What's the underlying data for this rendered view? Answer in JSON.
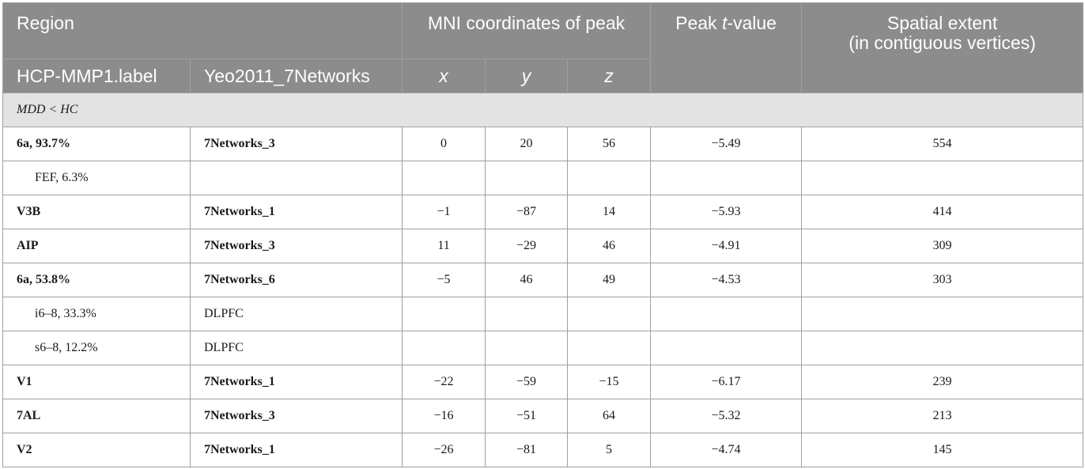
{
  "header": {
    "region": "Region",
    "mni": "MNI coordinates of peak",
    "peak_prefix": "Peak ",
    "peak_t": "t",
    "peak_suffix": "-value",
    "extent_line1": "Spatial extent",
    "extent_line2": "(in contiguous vertices)",
    "hcp": "HCP-MMP1.label",
    "yeo": "Yeo2011_7Networks",
    "x": "x",
    "y": "y",
    "z": "z"
  },
  "section_label": "MDD < HC",
  "rows": [
    {
      "hcp": "6a, 93.7%",
      "yeo": "7Networks_3",
      "x": "0",
      "y": "20",
      "z": "56",
      "t": "−5.49",
      "extent": "554",
      "bold": true,
      "sub": false
    },
    {
      "hcp": "FEF, 6.3%",
      "yeo": "",
      "x": "",
      "y": "",
      "z": "",
      "t": "",
      "extent": "",
      "bold": false,
      "sub": true
    },
    {
      "hcp": "V3B",
      "yeo": "7Networks_1",
      "x": "−1",
      "y": "−87",
      "z": "14",
      "t": "−5.93",
      "extent": "414",
      "bold": true,
      "sub": false
    },
    {
      "hcp": "AIP",
      "yeo": "7Networks_3",
      "x": "11",
      "y": "−29",
      "z": "46",
      "t": "−4.91",
      "extent": "309",
      "bold": true,
      "sub": false
    },
    {
      "hcp": "6a, 53.8%",
      "yeo": "7Networks_6",
      "x": "−5",
      "y": "46",
      "z": "49",
      "t": "−4.53",
      "extent": "303",
      "bold": true,
      "sub": false
    },
    {
      "hcp": "i6–8, 33.3%",
      "yeo": "DLPFC",
      "x": "",
      "y": "",
      "z": "",
      "t": "",
      "extent": "",
      "bold": false,
      "sub": true
    },
    {
      "hcp": "s6–8, 12.2%",
      "yeo": "DLPFC",
      "x": "",
      "y": "",
      "z": "",
      "t": "",
      "extent": "",
      "bold": false,
      "sub": true
    },
    {
      "hcp": "V1",
      "yeo": "7Networks_1",
      "x": "−22",
      "y": "−59",
      "z": "−15",
      "t": "−6.17",
      "extent": "239",
      "bold": true,
      "sub": false
    },
    {
      "hcp": "7AL",
      "yeo": "7Networks_3",
      "x": "−16",
      "y": "−51",
      "z": "64",
      "t": "−5.32",
      "extent": "213",
      "bold": true,
      "sub": false
    },
    {
      "hcp": "V2",
      "yeo": "7Networks_1",
      "x": "−26",
      "y": "−81",
      "z": "5",
      "t": "−4.74",
      "extent": "145",
      "bold": true,
      "sub": false
    }
  ]
}
